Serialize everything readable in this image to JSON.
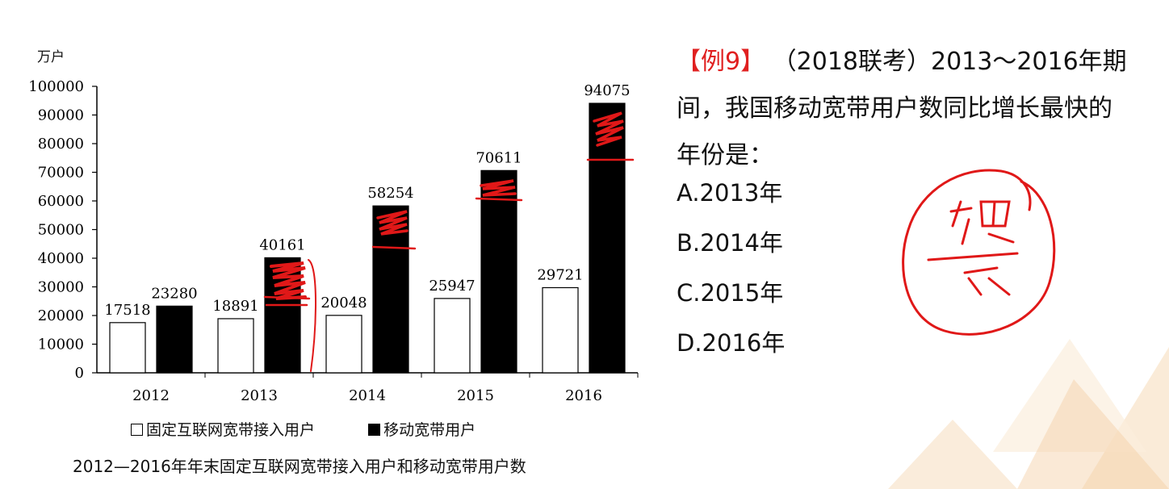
{
  "question": {
    "tag": "【例9】",
    "lines": [
      "（2018联考）2013～2016年期",
      "间，我国移动宽带用户数同比增长最快的",
      "年份是："
    ],
    "options": [
      "A.2013年",
      "B.2014年",
      "C.2015年",
      "D.2016年"
    ]
  },
  "chart_data": {
    "type": "bar",
    "title": "2012—2016年年末固定互联网宽带接入用户和移动宽带用户数",
    "ylabel": "万户",
    "xlabel": "",
    "ylim": [
      0,
      100000
    ],
    "yticks": [
      "0",
      "10000",
      "20000",
      "30000",
      "40000",
      "50000",
      "60000",
      "70000",
      "80000",
      "90000",
      "100000"
    ],
    "categories": [
      "2012",
      "2013",
      "2014",
      "2015",
      "2016"
    ],
    "series": [
      {
        "name": "固定互联网宽带接入用户",
        "values": [
          17518,
          18891,
          20048,
          25947,
          29721
        ],
        "color": "#ffffff"
      },
      {
        "name": "移动宽带用户",
        "values": [
          23280,
          40161,
          58254,
          70611,
          94075
        ],
        "color": "#000000"
      }
    ],
    "legend_position": "bottom",
    "grid": false
  },
  "colors": {
    "accent_red": "#e02020",
    "decor_orange": "#f6d9b8"
  }
}
